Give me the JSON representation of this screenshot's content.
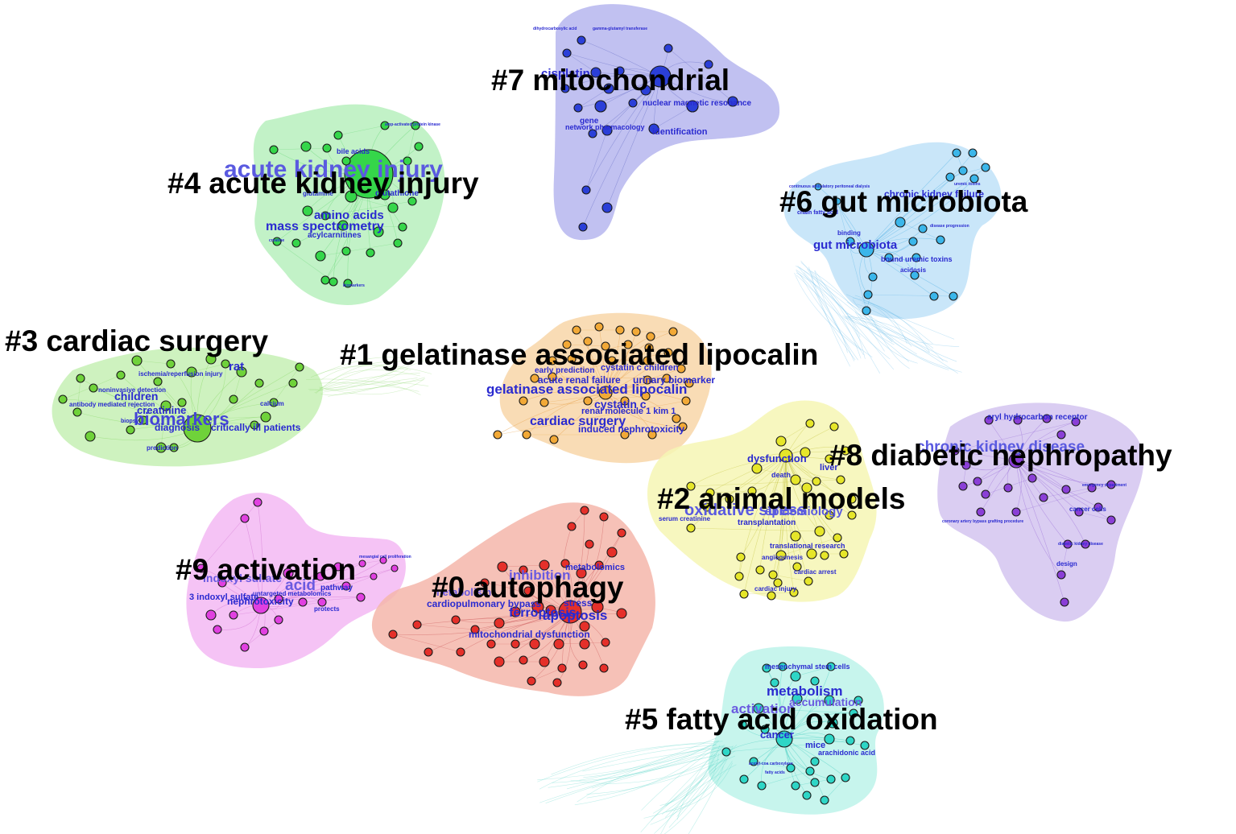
{
  "clusters": [
    {
      "id": "c7",
      "label": "#7 mitochondrial",
      "fill": "#b6b6ee",
      "node": "#2b3fd8",
      "edge": "#6b72c8",
      "keywords": [
        "dihydrocarboxylic acid",
        "gamma-glutamyl transferase",
        "cisplatin",
        "nuclear magnetic resonance",
        "gene",
        "network pharmacology",
        "identification"
      ]
    },
    {
      "id": "c4",
      "label": "#4 acute kidney injury",
      "fill": "#b7f0bd",
      "node": "#35d64a",
      "edge": "#6ad878",
      "keywords": [
        "acute kidney injury",
        "bile acids",
        "glutamine",
        "glutathione",
        "amino acids",
        "mass spectrometry",
        "acylcarnitines",
        "amp-activated protein kinase",
        "creatine",
        "biomarkers"
      ]
    },
    {
      "id": "c6",
      "label": "#6 gut microbiota",
      "fill": "#bfe2f8",
      "node": "#3bb6ea",
      "edge": "#5ab4e6",
      "keywords": [
        "continuous ambulatory peritoneal dialysis",
        "chronic kidney failure",
        "chain fatty acid",
        "gut microbiota",
        "binding",
        "bound uremic toxins",
        "acidosis",
        "disease progression",
        "uremic toxins"
      ]
    },
    {
      "id": "c3",
      "label": "#3 cardiac surgery",
      "fill": "#c6f0b4",
      "node": "#6fd23a",
      "edge": "#8ad86a",
      "keywords": [
        "rat",
        "ischemia/reperfusion injury",
        "noninvasive detection",
        "children",
        "antibody mediated rejection",
        "creatinine",
        "biomarkers",
        "calcium",
        "diagnosis",
        "critically ill patients",
        "prediction",
        "biopsy"
      ]
    },
    {
      "id": "c1",
      "label": "#1 gelatinase associated lipocalin",
      "fill": "#f8d6a8",
      "node": "#f2a937",
      "edge": "#e8a24a",
      "keywords": [
        "early prediction",
        "cystatin c children",
        "acute renal failure",
        "urinary biomarker",
        "gelatinase associated lipocalin",
        "cystatin c",
        "renal molecule 1 kim 1",
        "cardiac surgery",
        "induced nephrotoxicity"
      ]
    },
    {
      "id": "c8",
      "label": "#8 diabetic nephropathy",
      "fill": "#d4c4f0",
      "node": "#8a3fd6",
      "edge": "#9a70d8",
      "keywords": [
        "aryl hydrocarbon receptor",
        "chronic kidney disease",
        "cancer cells",
        "coronary artery bypass grafting procedure",
        "emergency department",
        "diabetic kidney disease",
        "design"
      ]
    },
    {
      "id": "c2",
      "label": "#2 animal models",
      "fill": "#f6f6b4",
      "node": "#e6e62a",
      "edge": "#c8c84a",
      "keywords": [
        "dysfunction",
        "liver",
        "death",
        "oxidative stress",
        "epidemiology",
        "serum creatinine",
        "transplantation",
        "translational research",
        "angiogenesis",
        "cardiac arrest",
        "cardiac injury"
      ]
    },
    {
      "id": "c9",
      "label": "#9 activation",
      "fill": "#f3b8f3",
      "node": "#e040e0",
      "edge": "#d070d0",
      "keywords": [
        "indoxyl sulfate",
        "acid",
        "pathway",
        "3 indoxyl sulfate",
        "untargeted metabolomics",
        "nephrotoxicity",
        "protects",
        "mesangial cell proliferation"
      ]
    },
    {
      "id": "c0",
      "label": "#0 autophagy",
      "fill": "#f5b6aa",
      "node": "#e5302a",
      "edge": "#d06060",
      "keywords": [
        "metabolomics",
        "inhibition",
        "cardiopulmonary bypass",
        "stress",
        "ferroptosis",
        "apoptosis",
        "mitochondrial dysfunction",
        "metabolism"
      ]
    },
    {
      "id": "c5",
      "label": "#5 fatty acid oxidation",
      "fill": "#bdf3ea",
      "node": "#2ed6c6",
      "edge": "#4ad0c2",
      "keywords": [
        "mesenchymal stem cells",
        "metabolism",
        "accumulation",
        "activation",
        "cancer",
        "mice",
        "arachidonic acid",
        "acetyl-coa carboxylase",
        "fatty acids"
      ]
    }
  ]
}
